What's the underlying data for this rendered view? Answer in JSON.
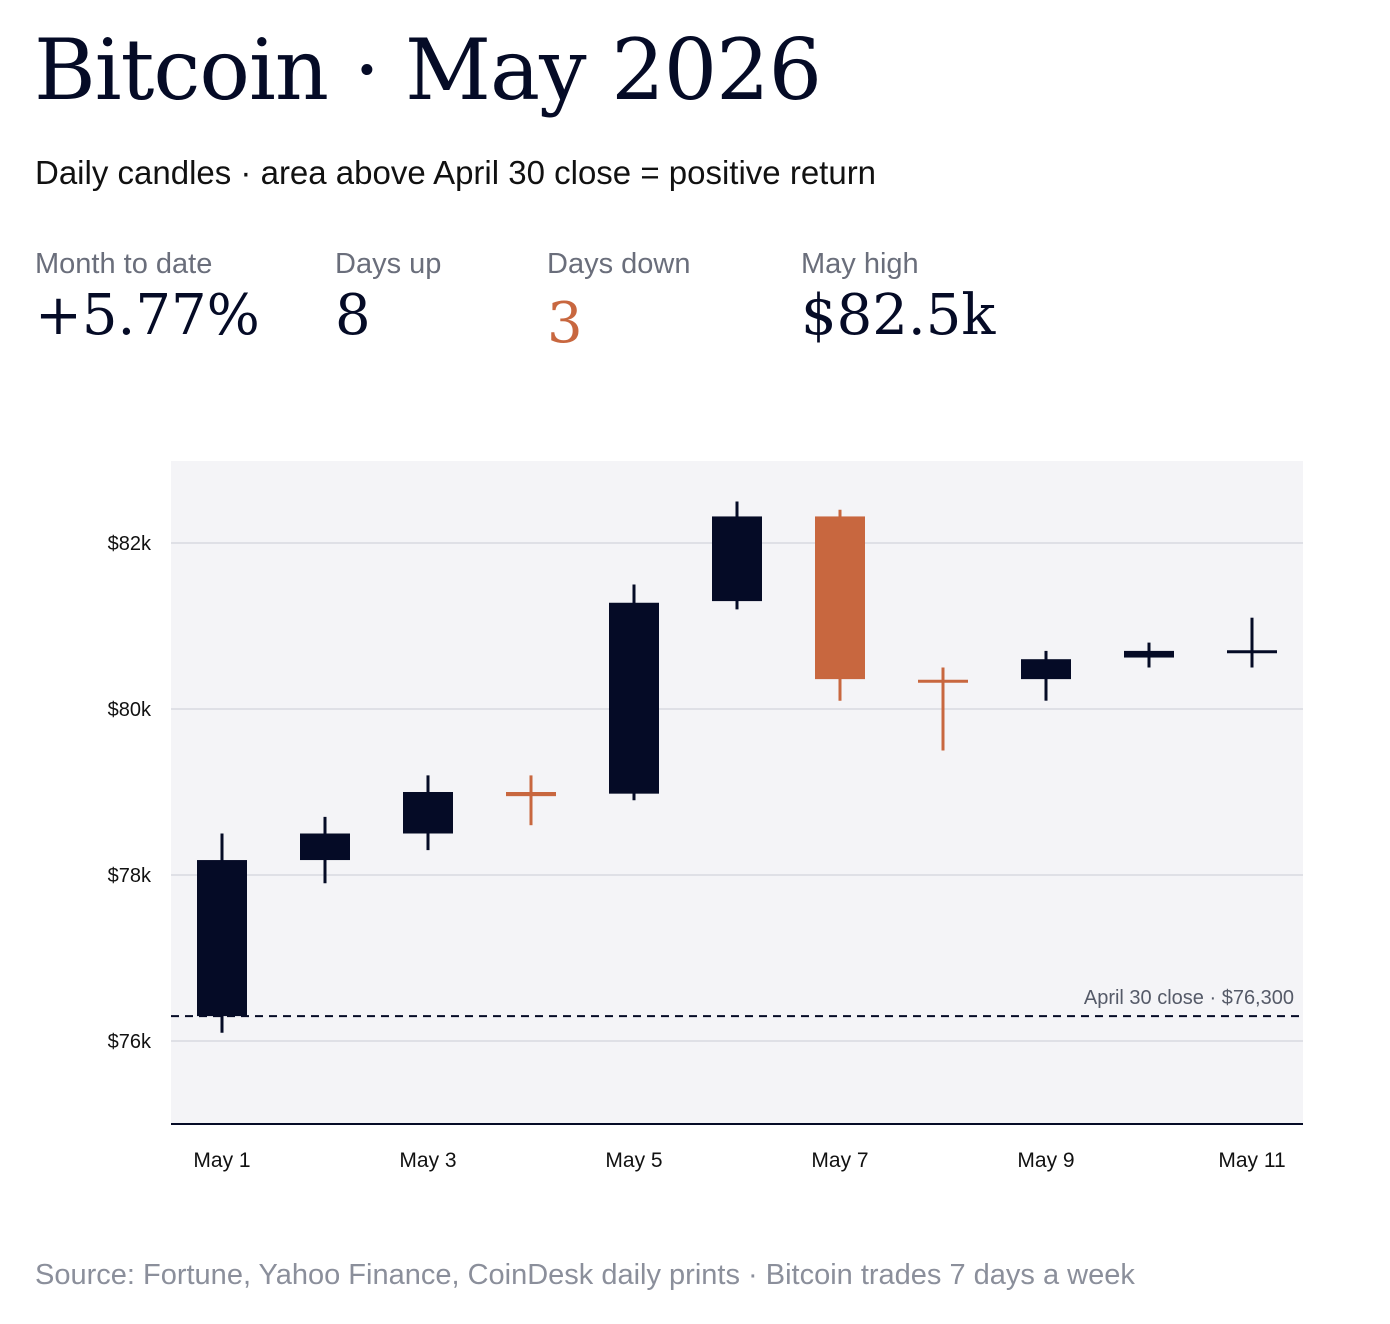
{
  "header": {
    "title": "Bitcoin · May 2026",
    "subtitle": "Daily candles · area above April 30 close = positive return"
  },
  "stats": [
    {
      "label": "Month to date",
      "value": "+5.77%"
    },
    {
      "label": "Days up",
      "value": "8"
    },
    {
      "label": "Days down",
      "value": "3"
    },
    {
      "label": "May high",
      "value": "$82.5k"
    }
  ],
  "colors": {
    "up": "#050b26",
    "down": "#c8673f",
    "plot_bg": "#f4f4f7",
    "grid": "#dfe0e6",
    "axis": "#050b26"
  },
  "chart_data": {
    "type": "candlestick",
    "title": "",
    "xlabel": "",
    "ylabel": "",
    "ylim": [
      75000,
      83000
    ],
    "y_ticks": [
      76000,
      78000,
      80000,
      82000
    ],
    "y_tick_labels": [
      "$76k",
      "$78k",
      "$80k",
      "$82k"
    ],
    "x_tick_labels": [
      "May 1",
      "May 3",
      "May 5",
      "May 7",
      "May 9",
      "May 11"
    ],
    "grid": true,
    "reference_line": {
      "value": 76300,
      "label": "April 30 close · $76,300"
    },
    "candles": [
      {
        "date": "May 1",
        "open": 76300,
        "close": 78180,
        "high": 78500,
        "low": 76100
      },
      {
        "date": "May 2",
        "open": 78180,
        "close": 78500,
        "high": 78700,
        "low": 77900
      },
      {
        "date": "May 3",
        "open": 78500,
        "close": 79000,
        "high": 79200,
        "low": 78300
      },
      {
        "date": "May 4",
        "open": 79000,
        "close": 78950,
        "high": 79200,
        "low": 78600
      },
      {
        "date": "May 5",
        "open": 78980,
        "close": 81280,
        "high": 81500,
        "low": 78900
      },
      {
        "date": "May 6",
        "open": 81300,
        "close": 82320,
        "high": 82500,
        "low": 81200
      },
      {
        "date": "May 7",
        "open": 82320,
        "close": 80360,
        "high": 82400,
        "low": 80100
      },
      {
        "date": "May 8",
        "open": 80350,
        "close": 80320,
        "high": 80500,
        "low": 79500
      },
      {
        "date": "May 9",
        "open": 80360,
        "close": 80600,
        "high": 80700,
        "low": 80100
      },
      {
        "date": "May 10",
        "open": 80620,
        "close": 80700,
        "high": 80800,
        "low": 80500
      },
      {
        "date": "May 11",
        "open": 80680,
        "close": 80700,
        "high": 81100,
        "low": 80500
      }
    ]
  },
  "footer": {
    "source": "Source: Fortune, Yahoo Finance, CoinDesk daily prints · Bitcoin trades 7 days a week"
  }
}
